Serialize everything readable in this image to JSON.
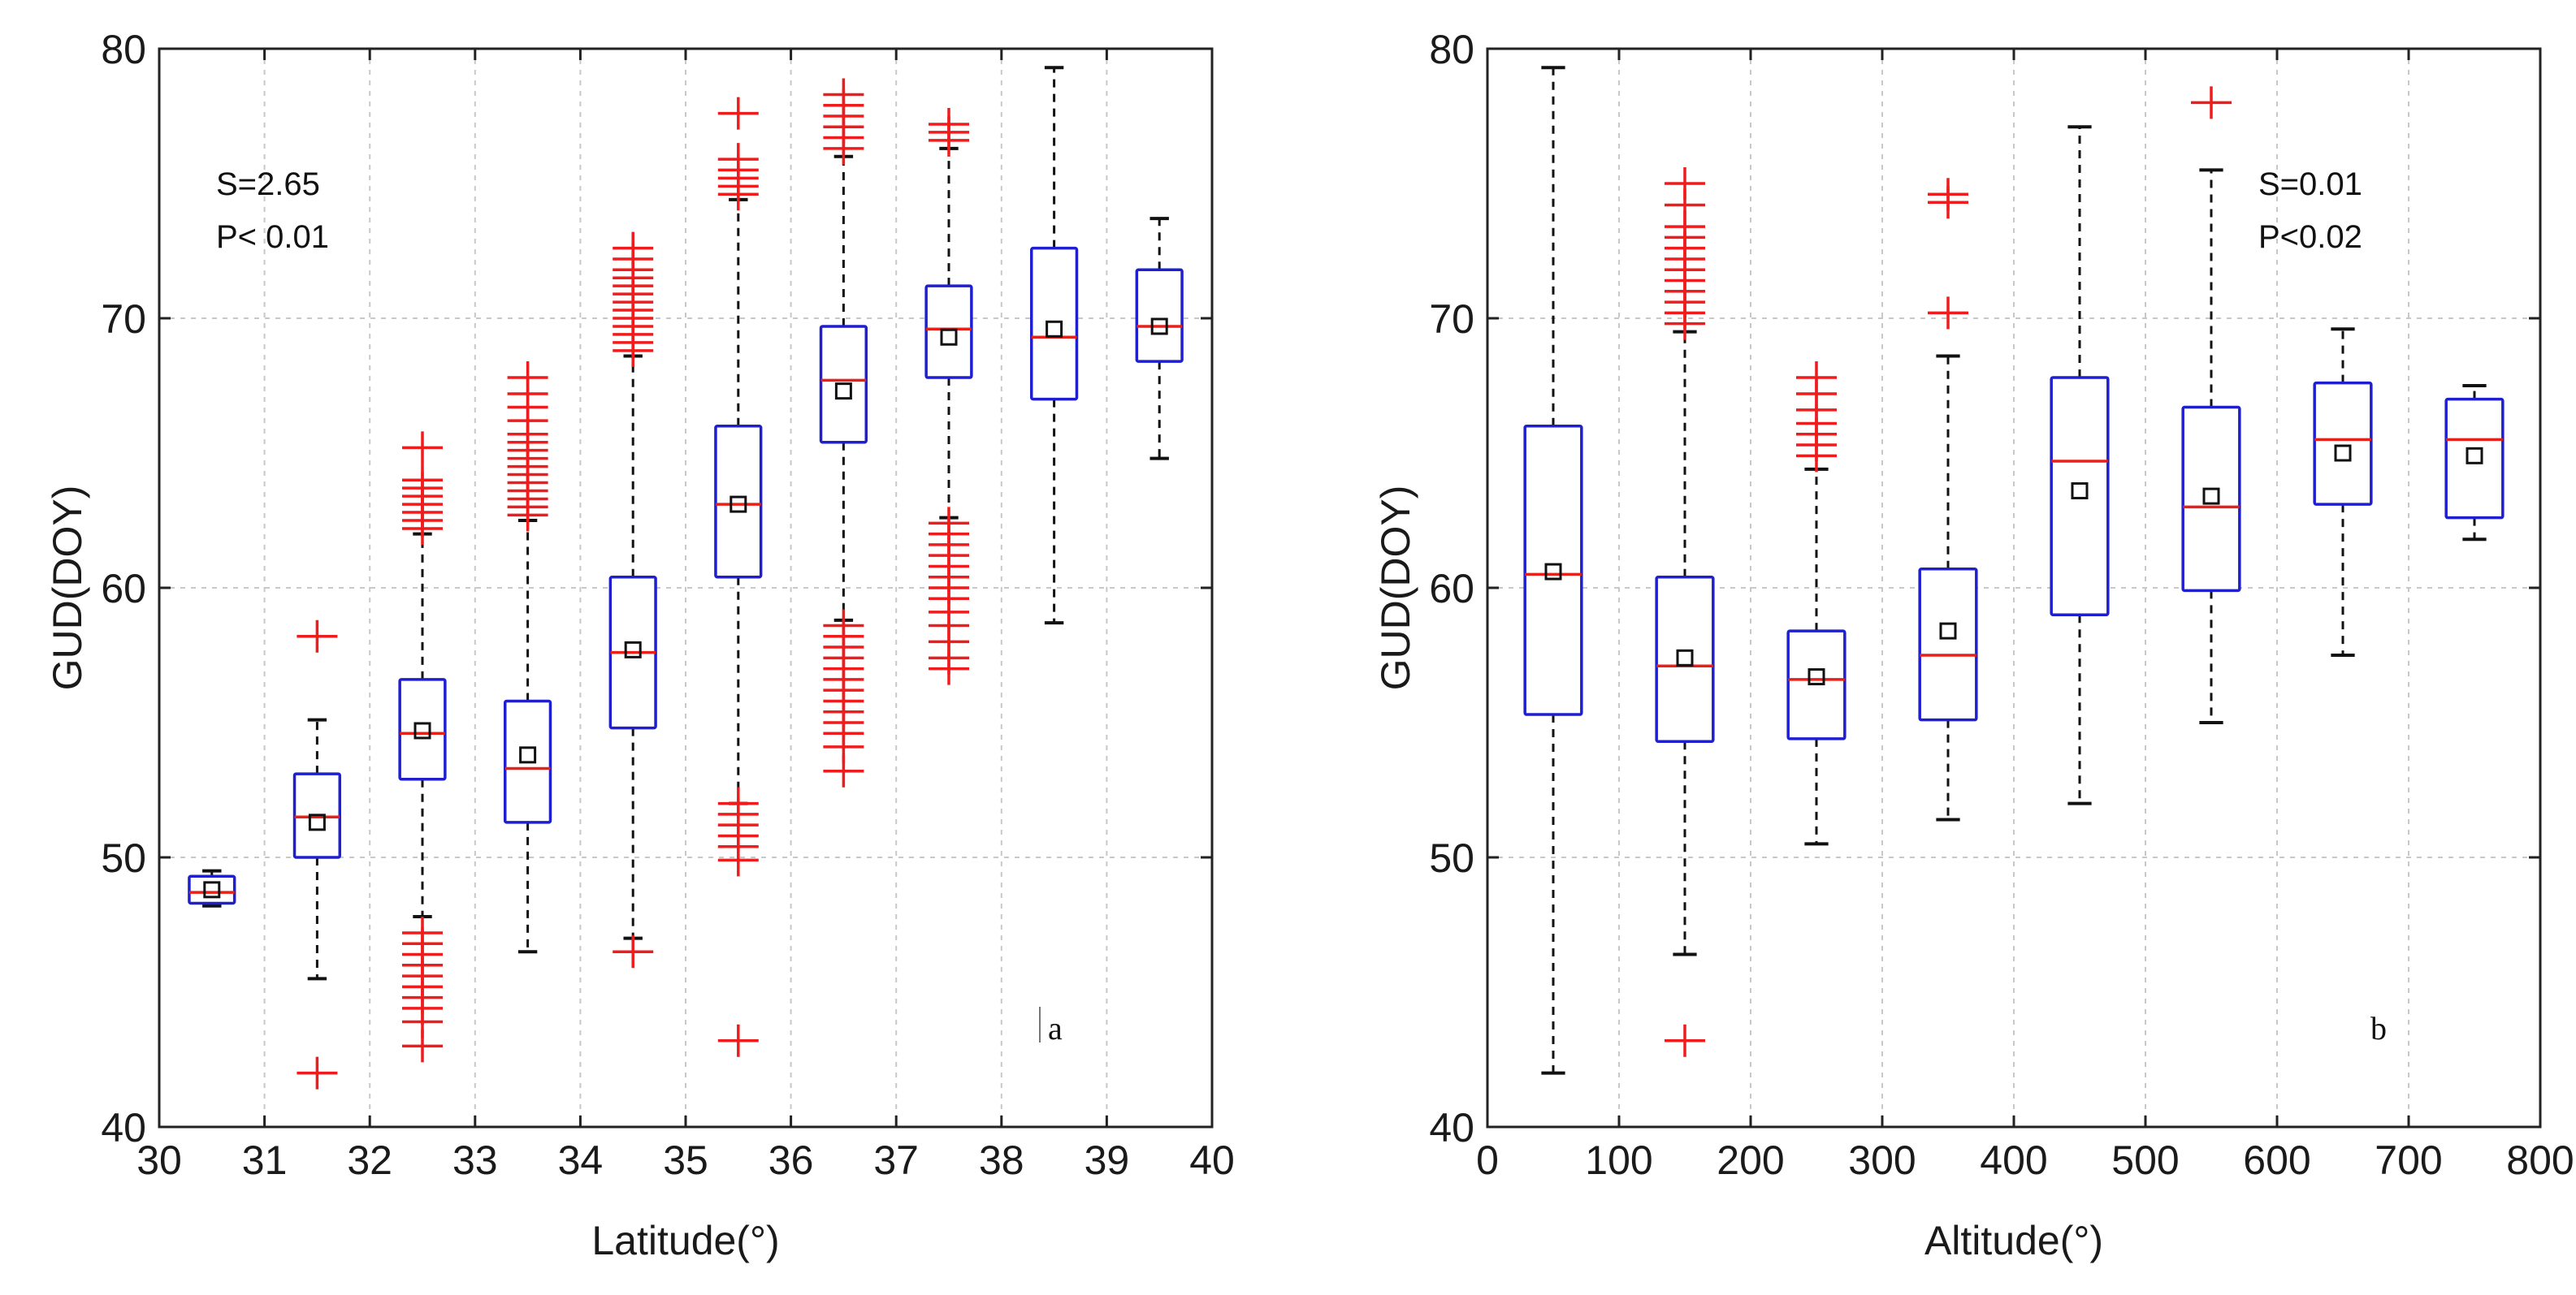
{
  "figure": {
    "panels_description": "Two box plots of GUD(DOY) against latitude and altitude"
  },
  "chart_data": [
    {
      "type": "box",
      "id": "latitude",
      "title": "",
      "xlabel": "Latitude(°)",
      "ylabel": "GUD(DOY)",
      "xlim": [
        30,
        40
      ],
      "ylim": [
        40,
        80
      ],
      "xticks": [
        30,
        31,
        32,
        33,
        34,
        35,
        36,
        37,
        38,
        39,
        40
      ],
      "xtick_labels": [
        "30",
        "31",
        "32",
        "33",
        "34",
        "35",
        "36",
        "37",
        "38",
        "39",
        "40"
      ],
      "yticks": [
        40,
        50,
        60,
        70,
        80
      ],
      "ytick_labels": [
        "40",
        "50",
        "60",
        "70",
        "80"
      ],
      "grid": true,
      "annotation_s": "S=2.65",
      "annotation_p": "P< 0.01",
      "panel_label": "a",
      "colors": {
        "box": "#1f1fd0",
        "median": "#e8201a",
        "whisker": "#111111",
        "outlier": "#ee1c1c",
        "mean": "#111111"
      },
      "boxes": [
        {
          "x": 30.5,
          "whislo": 48.2,
          "q1": 48.3,
          "med": 48.7,
          "q3": 49.3,
          "whishi": 49.5,
          "mean": 48.8,
          "fliers": []
        },
        {
          "x": 31.5,
          "whislo": 45.5,
          "q1": 50.0,
          "med": 51.5,
          "q3": 53.1,
          "whishi": 55.1,
          "mean": 51.3,
          "fliers": [
            58.2,
            42.0
          ]
        },
        {
          "x": 32.5,
          "whislo": 47.8,
          "q1": 52.9,
          "med": 54.6,
          "q3": 56.6,
          "whishi": 62.0,
          "mean": 54.7,
          "fliers": [
            62.2,
            62.5,
            62.8,
            63.1,
            63.4,
            63.7,
            64.0,
            65.2,
            47.2,
            46.8,
            46.4,
            46.0,
            45.6,
            45.2,
            44.8,
            44.4,
            43.9,
            43.0
          ]
        },
        {
          "x": 33.5,
          "whislo": 46.5,
          "q1": 51.3,
          "med": 53.3,
          "q3": 55.8,
          "whishi": 62.5,
          "mean": 53.8,
          "fliers": [
            62.7,
            63.0,
            63.3,
            63.6,
            63.9,
            64.2,
            64.5,
            64.8,
            65.1,
            65.4,
            65.7,
            66.2,
            66.7,
            67.2,
            67.8
          ]
        },
        {
          "x": 34.5,
          "whislo": 47.0,
          "q1": 54.8,
          "med": 57.6,
          "q3": 60.4,
          "whishi": 68.6,
          "mean": 57.7,
          "fliers": [
            68.8,
            69.1,
            69.4,
            69.7,
            70.0,
            70.3,
            70.6,
            70.9,
            71.2,
            71.5,
            71.8,
            72.2,
            72.6,
            46.5
          ]
        },
        {
          "x": 35.5,
          "whislo": 52.0,
          "q1": 60.4,
          "med": 63.1,
          "q3": 66.0,
          "whishi": 74.4,
          "mean": 63.1,
          "fliers": [
            74.6,
            74.9,
            75.2,
            75.5,
            75.9,
            77.6,
            52.0,
            51.6,
            51.2,
            50.8,
            50.4,
            49.9,
            43.2
          ]
        },
        {
          "x": 36.5,
          "whislo": 58.8,
          "q1": 65.4,
          "med": 67.7,
          "q3": 69.7,
          "whishi": 76.0,
          "mean": 67.3,
          "fliers": [
            76.3,
            76.7,
            77.1,
            77.5,
            77.9,
            78.3,
            58.6,
            58.2,
            57.8,
            57.4,
            57.0,
            56.6,
            56.2,
            55.8,
            55.4,
            55.0,
            54.6,
            54.1,
            53.2
          ]
        },
        {
          "x": 37.5,
          "whislo": 62.6,
          "q1": 67.8,
          "med": 69.6,
          "q3": 71.2,
          "whishi": 76.3,
          "mean": 69.3,
          "fliers": [
            76.6,
            76.9,
            77.2,
            62.4,
            62.0,
            61.6,
            61.2,
            60.8,
            60.4,
            60.0,
            59.6,
            59.1,
            58.6,
            58.0,
            57.4,
            57.0
          ]
        },
        {
          "x": 38.5,
          "whislo": 58.7,
          "q1": 67.0,
          "med": 69.3,
          "q3": 72.6,
          "whishi": 79.3,
          "mean": 69.6,
          "fliers": []
        },
        {
          "x": 39.5,
          "whislo": 64.8,
          "q1": 68.4,
          "med": 69.7,
          "q3": 71.8,
          "whishi": 73.7,
          "mean": 69.7,
          "fliers": []
        }
      ]
    },
    {
      "type": "box",
      "id": "altitude",
      "title": "",
      "xlabel": "Altitude(°)",
      "ylabel": "GUD(DOY)",
      "xlim": [
        0,
        800
      ],
      "ylim": [
        40,
        80
      ],
      "xticks": [
        0,
        100,
        200,
        300,
        400,
        500,
        600,
        700,
        800
      ],
      "xtick_labels": [
        "0",
        "100",
        "200",
        "300",
        "400",
        "500",
        "600",
        "700",
        "800"
      ],
      "yticks": [
        40,
        50,
        60,
        70,
        80
      ],
      "ytick_labels": [
        "40",
        "50",
        "60",
        "70",
        "80"
      ],
      "grid": true,
      "annotation_s": "S=0.01",
      "annotation_p": "P<0.02",
      "panel_label": "b",
      "colors": {
        "box": "#1f1fd0",
        "median": "#e8201a",
        "whisker": "#111111",
        "outlier": "#ee1c1c",
        "mean": "#111111"
      },
      "boxes": [
        {
          "x": 50,
          "whislo": 42.0,
          "q1": 55.3,
          "med": 60.5,
          "q3": 66.0,
          "whishi": 79.3,
          "mean": 60.6,
          "fliers": []
        },
        {
          "x": 150,
          "whislo": 46.4,
          "q1": 54.3,
          "med": 57.1,
          "q3": 60.4,
          "whishi": 69.5,
          "mean": 57.4,
          "fliers": [
            69.8,
            70.2,
            70.6,
            71.0,
            71.4,
            71.8,
            72.2,
            72.6,
            73.0,
            73.4,
            74.2,
            75.0,
            43.2
          ]
        },
        {
          "x": 250,
          "whislo": 50.5,
          "q1": 54.4,
          "med": 56.6,
          "q3": 58.4,
          "whishi": 64.4,
          "mean": 56.7,
          "fliers": [
            64.9,
            65.3,
            65.7,
            66.1,
            66.6,
            67.2,
            67.8
          ]
        },
        {
          "x": 350,
          "whislo": 51.4,
          "q1": 55.1,
          "med": 57.5,
          "q3": 60.7,
          "whishi": 68.6,
          "mean": 58.4,
          "fliers": [
            70.2,
            74.3,
            74.6
          ]
        },
        {
          "x": 450,
          "whislo": 52.0,
          "q1": 59.0,
          "med": 64.7,
          "q3": 67.8,
          "whishi": 77.1,
          "mean": 63.6,
          "fliers": []
        },
        {
          "x": 550,
          "whislo": 55.0,
          "q1": 59.9,
          "med": 63.0,
          "q3": 66.7,
          "whishi": 75.5,
          "mean": 63.4,
          "fliers": [
            78.0
          ]
        },
        {
          "x": 650,
          "whislo": 57.5,
          "q1": 63.1,
          "med": 65.5,
          "q3": 67.6,
          "whishi": 69.6,
          "mean": 65.0,
          "fliers": []
        },
        {
          "x": 750,
          "whislo": 61.8,
          "q1": 62.6,
          "med": 65.5,
          "q3": 67.0,
          "whishi": 67.5,
          "mean": 64.9,
          "fliers": []
        }
      ]
    }
  ]
}
